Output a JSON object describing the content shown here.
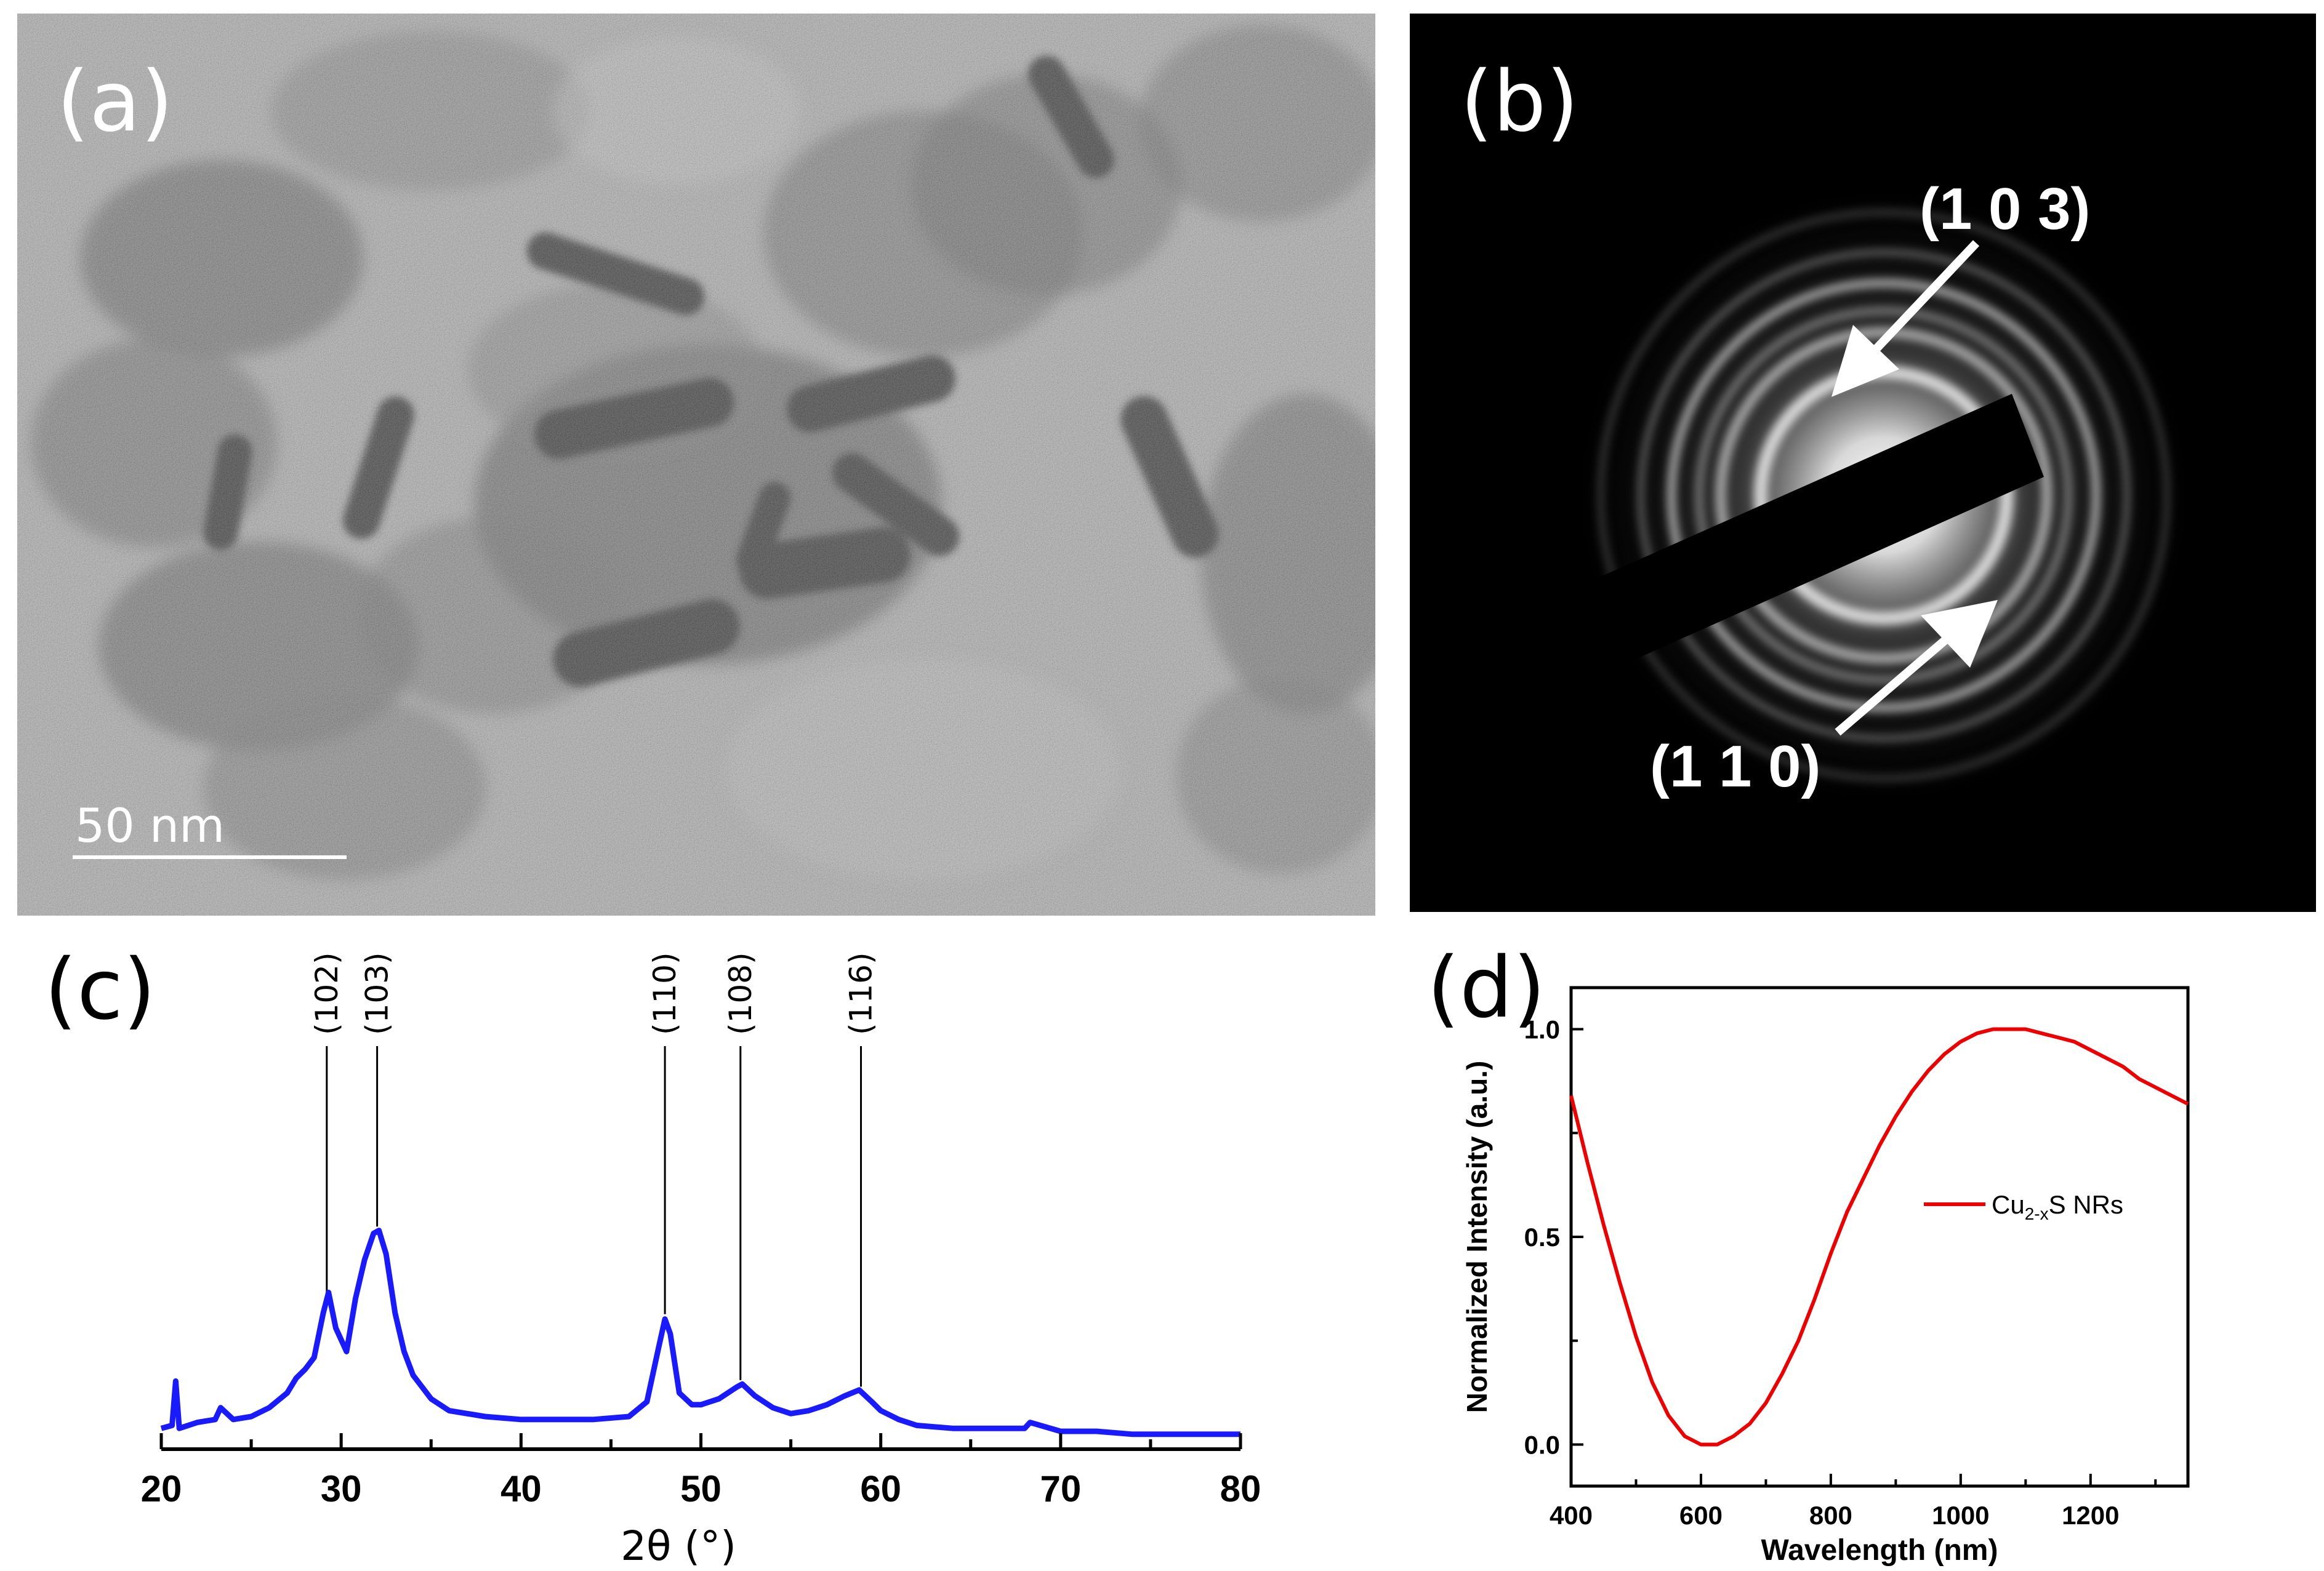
{
  "panels": {
    "a": {
      "tag": "(a)",
      "scale_bar_label": "50 nm"
    },
    "b": {
      "tag": "(b)",
      "ring_labels": [
        "(1 0 3)",
        "(1 1 0)"
      ]
    },
    "c": {
      "tag": "(c)"
    },
    "d": {
      "tag": "(d)"
    }
  },
  "chart_data": [
    {
      "panel": "c",
      "type": "line",
      "xlabel": "2θ (°)",
      "ylabel": "",
      "xlim": [
        20,
        80
      ],
      "xticks": [
        20,
        30,
        40,
        50,
        60,
        70,
        80
      ],
      "y_axis_shown": false,
      "grid": false,
      "series": [
        {
          "color": "#1a1aff",
          "x": [
            20,
            20.6,
            20.8,
            21,
            22,
            23,
            23.3,
            24,
            25,
            26,
            27,
            27.5,
            28,
            28.5,
            29,
            29.3,
            29.7,
            30.3,
            30.8,
            31.3,
            31.8,
            32.1,
            32.5,
            33,
            33.5,
            34,
            35,
            36,
            38,
            40,
            42,
            44,
            46,
            47,
            47.6,
            48,
            48.3,
            48.8,
            49.5,
            50,
            51,
            52,
            52.3,
            53,
            54,
            55,
            56,
            57,
            58,
            58.8,
            59.5,
            60,
            61,
            62,
            64,
            66,
            68,
            68.3,
            70,
            72,
            74,
            76,
            78,
            80
          ],
          "values": [
            0.06,
            0.07,
            0.22,
            0.06,
            0.08,
            0.09,
            0.13,
            0.09,
            0.1,
            0.13,
            0.18,
            0.23,
            0.26,
            0.3,
            0.45,
            0.52,
            0.4,
            0.32,
            0.5,
            0.63,
            0.72,
            0.73,
            0.65,
            0.45,
            0.32,
            0.24,
            0.16,
            0.12,
            0.1,
            0.09,
            0.09,
            0.09,
            0.1,
            0.15,
            0.32,
            0.43,
            0.38,
            0.18,
            0.14,
            0.14,
            0.16,
            0.2,
            0.21,
            0.17,
            0.13,
            0.11,
            0.12,
            0.14,
            0.17,
            0.19,
            0.15,
            0.12,
            0.09,
            0.07,
            0.06,
            0.06,
            0.06,
            0.08,
            0.05,
            0.05,
            0.04,
            0.04,
            0.04,
            0.04
          ]
        }
      ],
      "peak_labels": [
        {
          "label": "(102)",
          "x": 29.2
        },
        {
          "label": "(103)",
          "x": 32.0
        },
        {
          "label": "(110)",
          "x": 48.0
        },
        {
          "label": "(108)",
          "x": 52.2
        },
        {
          "label": "(116)",
          "x": 58.9
        }
      ]
    },
    {
      "panel": "d",
      "type": "line",
      "xlabel": "Wavelength (nm)",
      "ylabel": "Normalized Intensity (a.u.)",
      "xlim": [
        400,
        1350
      ],
      "ylim": [
        -0.1,
        1.1
      ],
      "xticks": [
        400,
        600,
        800,
        1000,
        1200
      ],
      "yticks": [
        0.0,
        0.5,
        1.0
      ],
      "grid": false,
      "legend_position": "right",
      "series": [
        {
          "name": "Cu2-xS NRs",
          "name_main": "Cu",
          "name_sub": "2-x",
          "name_rest": "S NRs",
          "color": "#ee0000",
          "x": [
            400,
            425,
            450,
            475,
            500,
            525,
            550,
            575,
            600,
            625,
            650,
            675,
            700,
            725,
            750,
            775,
            800,
            825,
            850,
            875,
            900,
            925,
            950,
            975,
            1000,
            1025,
            1050,
            1075,
            1100,
            1125,
            1150,
            1175,
            1200,
            1225,
            1250,
            1275,
            1300,
            1325,
            1350
          ],
          "values": [
            0.84,
            0.68,
            0.53,
            0.39,
            0.26,
            0.15,
            0.07,
            0.02,
            0.0,
            0.0,
            0.02,
            0.05,
            0.1,
            0.17,
            0.25,
            0.35,
            0.46,
            0.56,
            0.64,
            0.72,
            0.79,
            0.85,
            0.9,
            0.94,
            0.97,
            0.99,
            1.0,
            1.0,
            1.0,
            0.99,
            0.98,
            0.97,
            0.95,
            0.93,
            0.91,
            0.88,
            0.86,
            0.84,
            0.82
          ]
        }
      ]
    }
  ]
}
